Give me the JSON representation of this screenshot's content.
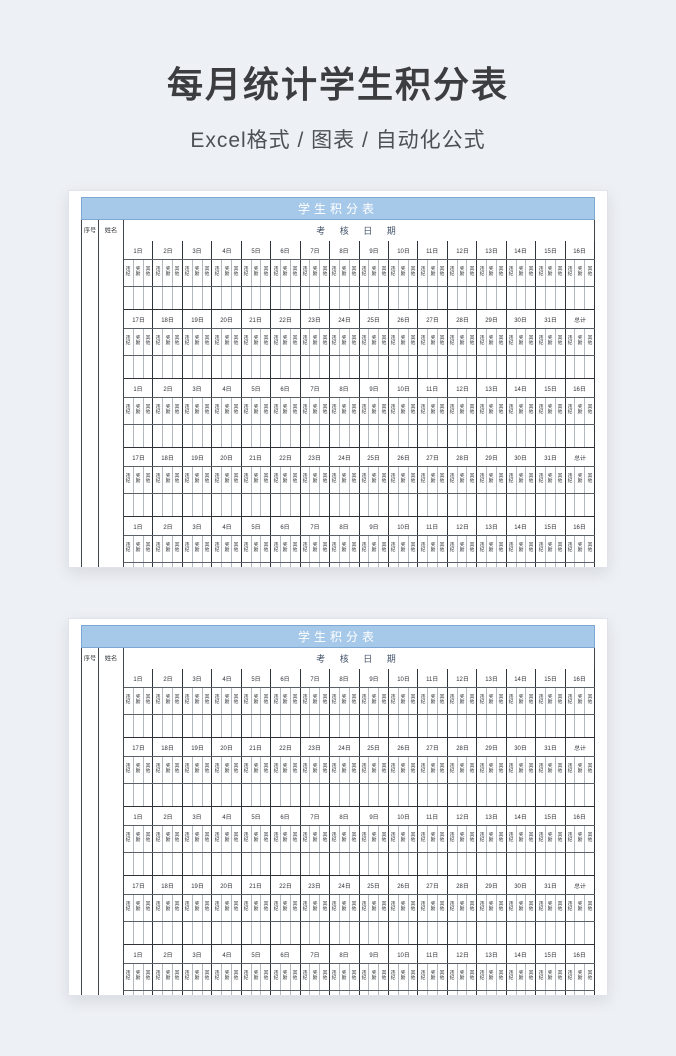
{
  "page": {
    "title": "每月统计学生积分表",
    "subtitle": "Excel格式 / 图表 / 自动化公式"
  },
  "colors": {
    "page_bg": "#edf0f4",
    "banner_bg": "#a6c9ea",
    "banner_border": "#7ea7d4",
    "banner_text": "#ffffff",
    "date_header_text": "#44546a",
    "title_text": "#3b3d40",
    "subtitle_text": "#4d5156"
  },
  "sheet": {
    "banner_title": "学生积分表",
    "columns": {
      "serial": "序号",
      "name": "姓名",
      "date_header": "考 核 日 期"
    },
    "sub_labels": [
      "违纪",
      "奖励",
      "其他"
    ],
    "day_groups": {
      "first_half": [
        "1日",
        "2日",
        "3日",
        "4日",
        "5日",
        "6日",
        "7日",
        "8日",
        "9日",
        "10日",
        "11日",
        "12日",
        "13日",
        "14日",
        "15日",
        "16日"
      ],
      "second_half": [
        "17日",
        "18日",
        "19日",
        "20日",
        "21日",
        "22日",
        "23日",
        "24日",
        "25日",
        "26日",
        "27日",
        "28日",
        "29日",
        "30日",
        "31日",
        "总计"
      ]
    },
    "bands": [
      {
        "days": "first_half",
        "truncated": false
      },
      {
        "days": "second_half",
        "truncated": false
      },
      {
        "days": "first_half",
        "truncated": false
      },
      {
        "days": "second_half",
        "truncated": false
      },
      {
        "days": "first_half",
        "truncated": true
      }
    ]
  },
  "cards": [
    {
      "name": "preview-card-1"
    },
    {
      "name": "preview-card-2"
    }
  ]
}
